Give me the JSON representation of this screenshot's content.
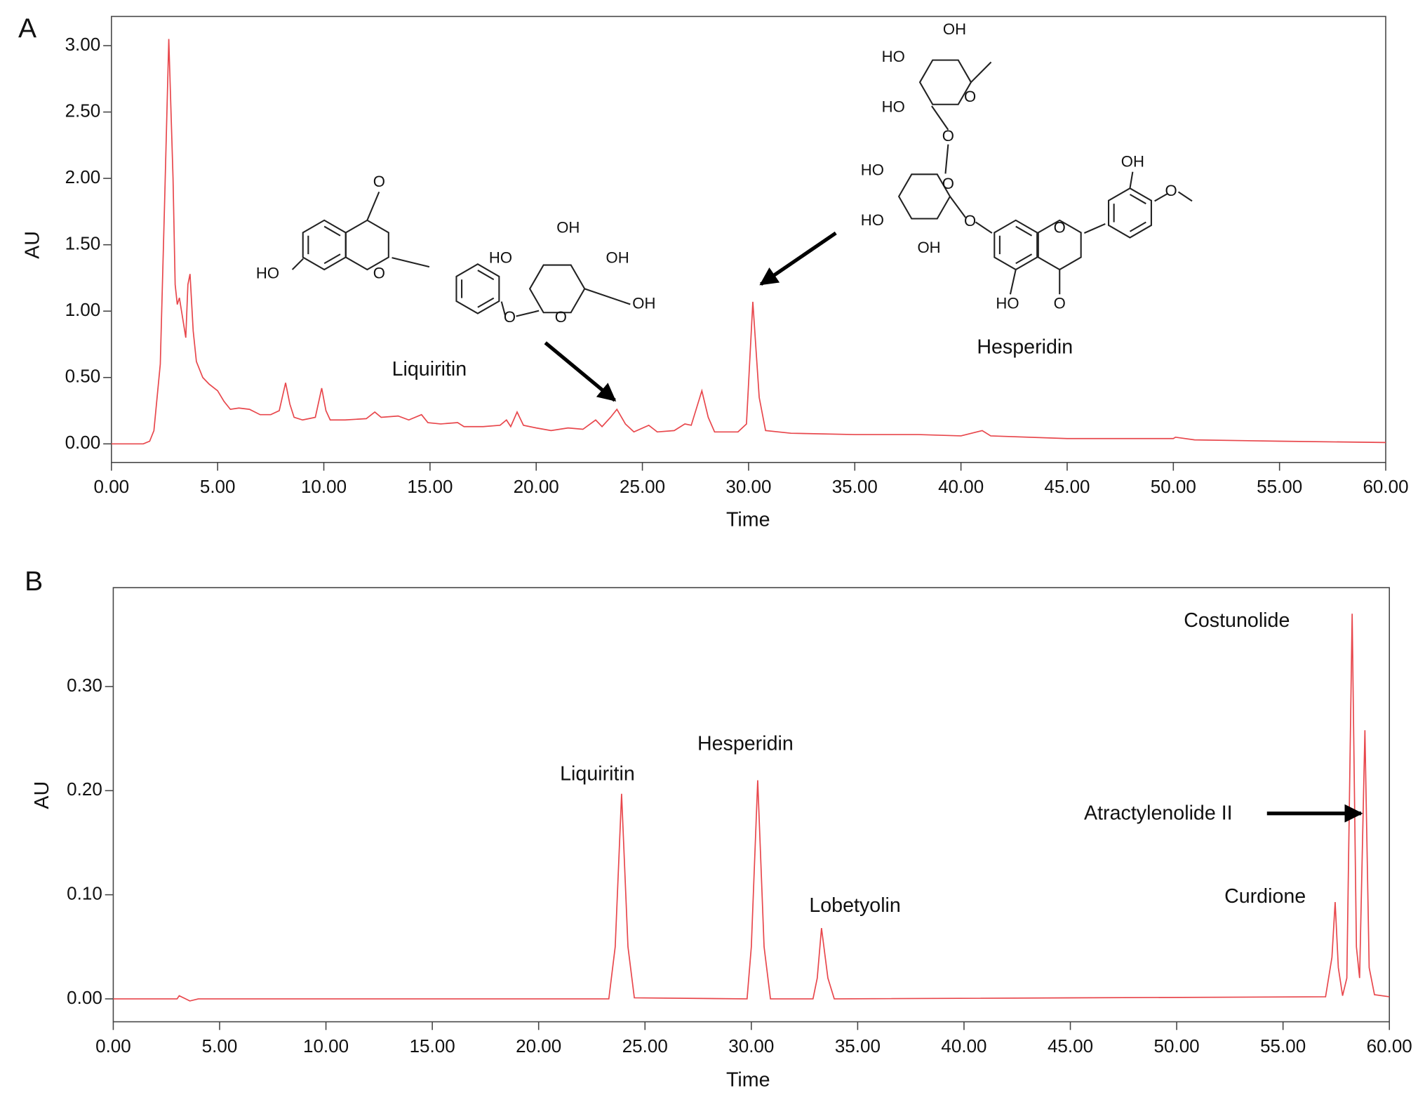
{
  "chart_data": [
    {
      "type": "line",
      "panel_label": "A",
      "x_label": "Time",
      "y_label": "AU",
      "color": "#e8474c",
      "x": [
        0,
        1.5,
        1.8,
        2.0,
        2.3,
        2.5,
        2.7,
        2.9,
        3.0,
        3.1,
        3.2,
        3.35,
        3.5,
        3.6,
        3.7,
        3.85,
        4.0,
        4.3,
        4.6,
        5.0,
        5.3,
        5.6,
        6.0,
        6.5,
        7.0,
        7.5,
        7.9,
        8.2,
        8.4,
        8.6,
        9.0,
        9.6,
        9.9,
        10.1,
        10.3,
        11,
        12,
        12.4,
        12.7,
        13.5,
        14,
        14.6,
        14.9,
        15.5,
        16.3,
        16.6,
        17.5,
        18.3,
        18.6,
        18.8,
        19.1,
        19.4,
        20.0,
        20.7,
        21.5,
        22.2,
        22.8,
        23.1,
        23.5,
        23.8,
        24.2,
        24.6,
        25.3,
        25.7,
        26.5,
        27.0,
        27.3,
        27.8,
        28.1,
        28.4,
        29.5,
        29.9,
        30.2,
        30.5,
        30.8,
        32,
        35,
        38,
        40,
        41.0,
        41.4,
        45,
        50,
        50.1,
        51,
        55,
        60
      ],
      "values": [
        0,
        0,
        0.02,
        0.1,
        0.6,
        1.8,
        3.05,
        2.0,
        1.2,
        1.05,
        1.1,
        0.95,
        0.8,
        1.2,
        1.28,
        0.85,
        0.62,
        0.5,
        0.45,
        0.4,
        0.32,
        0.26,
        0.27,
        0.26,
        0.22,
        0.22,
        0.25,
        0.46,
        0.3,
        0.2,
        0.18,
        0.2,
        0.42,
        0.25,
        0.18,
        0.18,
        0.19,
        0.24,
        0.2,
        0.21,
        0.18,
        0.22,
        0.16,
        0.15,
        0.16,
        0.13,
        0.13,
        0.14,
        0.18,
        0.13,
        0.24,
        0.14,
        0.12,
        0.1,
        0.12,
        0.11,
        0.18,
        0.13,
        0.2,
        0.26,
        0.15,
        0.09,
        0.14,
        0.09,
        0.1,
        0.15,
        0.14,
        0.4,
        0.2,
        0.09,
        0.09,
        0.15,
        1.07,
        0.35,
        0.1,
        0.08,
        0.07,
        0.07,
        0.06,
        0.1,
        0.06,
        0.04,
        0.04,
        0.05,
        0.03,
        0.02,
        0.01
      ],
      "xlim": [
        0,
        60
      ],
      "ylim": [
        -0.14,
        3.22
      ],
      "xticks": [
        {
          "value": 0,
          "label": "0.00"
        },
        {
          "value": 5,
          "label": "5.00"
        },
        {
          "value": 10,
          "label": "10.00"
        },
        {
          "value": 15,
          "label": "15.00"
        },
        {
          "value": 20,
          "label": "20.00"
        },
        {
          "value": 25,
          "label": "25.00"
        },
        {
          "value": 30,
          "label": "30.00"
        },
        {
          "value": 35,
          "label": "35.00"
        },
        {
          "value": 40,
          "label": "40.00"
        },
        {
          "value": 45,
          "label": "45.00"
        },
        {
          "value": 50,
          "label": "50.00"
        },
        {
          "value": 55,
          "label": "55.00"
        },
        {
          "value": 60,
          "label": "60.00"
        }
      ],
      "yticks": [
        {
          "value": 0,
          "label": "0.00"
        },
        {
          "value": 0.5,
          "label": "0.50"
        },
        {
          "value": 1,
          "label": "1.00"
        },
        {
          "value": 1.5,
          "label": "1.50"
        },
        {
          "value": 2,
          "label": "2.00"
        },
        {
          "value": 2.5,
          "label": "2.50"
        },
        {
          "value": 3,
          "label": "3.00"
        }
      ],
      "annotations": [
        "Liquiritin",
        "Hesperidin"
      ],
      "structure_atoms": [
        [
          "O",
          "HO",
          "O",
          "O",
          "O",
          "HO",
          "OH",
          "OH",
          "OH"
        ],
        [
          "OH",
          "HO",
          "HO",
          "O",
          "O",
          "HO",
          "O",
          "HO",
          "O",
          "OH",
          "O",
          "OH",
          "O",
          "HO",
          "O"
        ]
      ]
    },
    {
      "type": "line",
      "panel_label": "B",
      "x_label": "Time",
      "y_label": "AU",
      "color": "#e8474c",
      "x": [
        0,
        3,
        3.1,
        3.4,
        3.6,
        4,
        23.3,
        23.6,
        23.9,
        24.2,
        24.5,
        29.8,
        30.0,
        30.3,
        30.6,
        30.9,
        32.9,
        33.1,
        33.3,
        33.6,
        33.9,
        57.0,
        57.3,
        57.45,
        57.6,
        57.8,
        58.0,
        58.25,
        58.45,
        58.6,
        58.85,
        59.05,
        59.3,
        60
      ],
      "values": [
        0,
        0,
        0.003,
        0,
        -0.002,
        0,
        0,
        0.05,
        0.197,
        0.05,
        0.001,
        0,
        0.05,
        0.21,
        0.05,
        0,
        0,
        0.02,
        0.068,
        0.02,
        0,
        0.002,
        0.04,
        0.093,
        0.03,
        0.003,
        0.02,
        0.37,
        0.05,
        0.02,
        0.258,
        0.03,
        0.004,
        0.002
      ],
      "xlim": [
        0,
        60
      ],
      "ylim": [
        -0.022,
        0.395
      ],
      "xticks": [
        {
          "value": 0,
          "label": "0.00"
        },
        {
          "value": 5,
          "label": "5.00"
        },
        {
          "value": 10,
          "label": "10.00"
        },
        {
          "value": 15,
          "label": "15.00"
        },
        {
          "value": 20,
          "label": "20.00"
        },
        {
          "value": 25,
          "label": "25.00"
        },
        {
          "value": 30,
          "label": "30.00"
        },
        {
          "value": 35,
          "label": "35.00"
        },
        {
          "value": 40,
          "label": "40.00"
        },
        {
          "value": 45,
          "label": "45.00"
        },
        {
          "value": 50,
          "label": "50.00"
        },
        {
          "value": 55,
          "label": "55.00"
        },
        {
          "value": 60,
          "label": "60.00"
        }
      ],
      "yticks": [
        {
          "value": 0,
          "label": "0.00"
        },
        {
          "value": 0.1,
          "label": "0.10"
        },
        {
          "value": 0.2,
          "label": "0.20"
        },
        {
          "value": 0.3,
          "label": "0.30"
        }
      ],
      "annotations": [
        "Liquiritin",
        "Hesperidin",
        "Lobetyolin",
        "Costunolide",
        "Atractylenolide II",
        "Curdione"
      ]
    }
  ]
}
